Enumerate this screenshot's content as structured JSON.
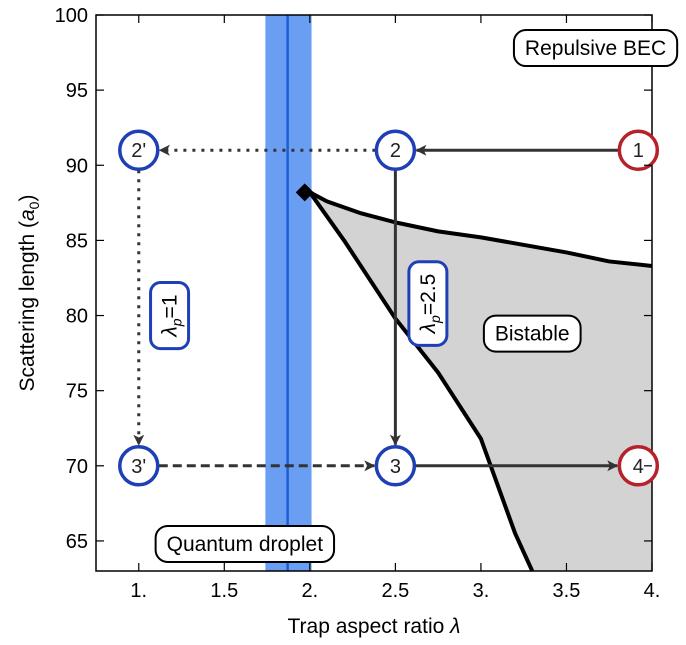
{
  "chart_data": {
    "type": "scatter",
    "xlabel": "Trap aspect ratio",
    "xlabel_symbol": "λ",
    "ylabel": "Scattering length (",
    "ylabel_unit_symbol": "a",
    "ylabel_unit_sub": "0",
    "ylabel_close": ")",
    "xlim": [
      0.75,
      4.0
    ],
    "ylim": [
      63,
      100
    ],
    "xticks": [
      1.0,
      1.5,
      2.0,
      2.5,
      3.0,
      3.5,
      4.0
    ],
    "xtick_labels": [
      "1.",
      "1.5",
      "2.",
      "2.5",
      "3.",
      "3.5",
      "4."
    ],
    "yticks": [
      65,
      70,
      75,
      80,
      85,
      90,
      95,
      100
    ],
    "ytick_labels": [
      "65",
      "70",
      "75",
      "80",
      "85",
      "90",
      "95",
      "100"
    ],
    "grid": false,
    "vertical_band": {
      "center": 1.87,
      "x_min": 1.74,
      "x_max": 2.01,
      "color": "#6a9ef2",
      "line_color": "#1a5fd6"
    },
    "bistable_region": {
      "upper_boundary": [
        [
          2.0,
          88.2
        ],
        [
          2.1,
          87.6
        ],
        [
          2.3,
          86.8
        ],
        [
          2.5,
          86.2
        ],
        [
          2.75,
          85.6
        ],
        [
          3.0,
          85.2
        ],
        [
          3.5,
          84.2
        ],
        [
          3.75,
          83.6
        ],
        [
          4.0,
          83.3
        ]
      ],
      "lower_boundary": [
        [
          2.0,
          88.2
        ],
        [
          2.2,
          85.0
        ],
        [
          2.5,
          79.8
        ],
        [
          2.75,
          76.2
        ],
        [
          3.0,
          71.8
        ],
        [
          3.2,
          65.5
        ],
        [
          3.3,
          63.0
        ]
      ],
      "fill": "#d3d3d3"
    },
    "critical_point": {
      "x": 1.97,
      "y": 88.2
    },
    "points": [
      {
        "label": "1",
        "x": 3.92,
        "y": 91,
        "color": "#b5222b"
      },
      {
        "label": "2",
        "x": 2.5,
        "y": 91,
        "color": "#1f3fb5"
      },
      {
        "label": "2'",
        "x": 1.0,
        "y": 91,
        "color": "#1f3fb5"
      },
      {
        "label": "3'",
        "x": 1.0,
        "y": 70,
        "color": "#1f3fb5"
      },
      {
        "label": "3",
        "x": 2.5,
        "y": 70,
        "color": "#1f3fb5"
      },
      {
        "label": "4",
        "x": 3.92,
        "y": 70,
        "color": "#b5222b"
      }
    ],
    "paths": [
      {
        "from": "1",
        "to": "2",
        "style": "solid"
      },
      {
        "from": "2",
        "to": "2'",
        "style": "dotted"
      },
      {
        "from": "2",
        "to": "3",
        "style": "solid"
      },
      {
        "from": "2'",
        "to": "3'",
        "style": "dotted"
      },
      {
        "from": "3'",
        "to": "3",
        "style": "dashed"
      },
      {
        "from": "3",
        "to": "4",
        "style": "solid"
      }
    ],
    "region_labels": [
      {
        "text": "Repulsive BEC",
        "x": 3.67,
        "y": 97.8
      },
      {
        "text": "Bistable",
        "x": 3.3,
        "y": 78.8
      },
      {
        "text": "Quantum droplet",
        "x": 1.62,
        "y": 64.8
      }
    ],
    "path_labels": [
      {
        "symbol": "λ",
        "sub": "p",
        "value": "=1",
        "x": 1.18,
        "y": 80.0,
        "rotation": -90
      },
      {
        "symbol": "λ",
        "sub": "p",
        "value": "=2.5",
        "x": 2.69,
        "y": 80.8,
        "rotation": -90
      }
    ]
  }
}
